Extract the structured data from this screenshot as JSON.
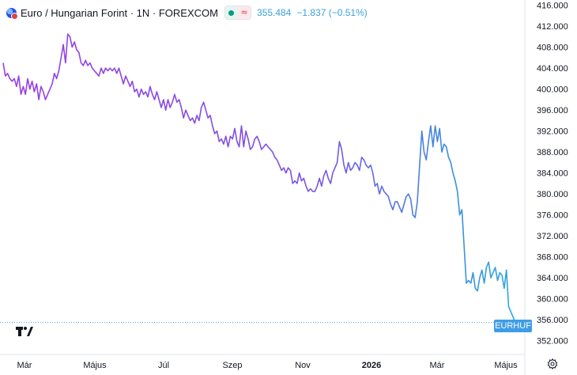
{
  "legend": {
    "title": "Euro / Hungarian Forint · 1N · FOREXCOM",
    "price": "355.484",
    "change": "−1.837 (−0.51%)",
    "wave_symbol": "≈"
  },
  "price_tag": "EURHUF",
  "colors": {
    "line_start": "#9a3fe3",
    "line_end": "#2fa7e3",
    "last_price_line": "#4aa6e8",
    "grid": "#f0f3fa",
    "axis_text": "#131722"
  },
  "icons": [
    "tradingview-logo-icon",
    "gear-icon",
    "market-open-dot-icon",
    "wave-icon"
  ],
  "chart_data": {
    "type": "line",
    "ylim": [
      350.0,
      417.0
    ],
    "y_ticks": [
      "416.000",
      "412.000",
      "408.000",
      "404.000",
      "400.000",
      "396.000",
      "392.000",
      "388.000",
      "384.000",
      "380.000",
      "376.000",
      "372.000",
      "368.000",
      "364.000",
      "360.000",
      "356.000",
      "352.000"
    ],
    "x_ticks": [
      "Már",
      "Május",
      "Júl",
      "Szep",
      "Nov",
      "2026",
      "Már",
      "Május"
    ],
    "grid": false,
    "last_price": 355.484,
    "series": [
      {
        "values": [
          405.0,
          402.5,
          403.0,
          402.0,
          401.5,
          402.0,
          400.5,
          402.5,
          399.0,
          400.5,
          399.0,
          402.0,
          400.0,
          401.5,
          399.5,
          401.0,
          398.0,
          400.5,
          399.5,
          398.0,
          399.0,
          400.0,
          401.0,
          403.0,
          402.0,
          403.5,
          406.0,
          408.5,
          405.0,
          410.5,
          410.0,
          408.0,
          409.0,
          407.5,
          407.0,
          405.0,
          404.5,
          405.5,
          404.5,
          405.0,
          404.0,
          403.5,
          403.0,
          402.5,
          404.0,
          403.0,
          404.0,
          403.5,
          404.0,
          403.5,
          404.0,
          403.0,
          404.0,
          402.5,
          401.0,
          402.5,
          401.5,
          400.5,
          401.5,
          399.5,
          400.0,
          398.5,
          400.0,
          399.0,
          399.5,
          398.5,
          400.5,
          399.0,
          398.0,
          399.5,
          398.0,
          396.5,
          398.0,
          396.0,
          398.0,
          396.5,
          397.5,
          399.0,
          397.5,
          398.0,
          396.5,
          394.5,
          396.0,
          395.0,
          394.0,
          394.5,
          393.5,
          395.0,
          394.0,
          396.5,
          397.5,
          396.0,
          394.5,
          395.0,
          393.0,
          391.5,
          392.0,
          390.0,
          390.5,
          389.5,
          391.0,
          389.0,
          391.0,
          390.5,
          392.5,
          390.0,
          389.0,
          393.0,
          389.0,
          392.0,
          390.5,
          388.5,
          389.0,
          390.5,
          391.0,
          390.0,
          388.5,
          389.0,
          389.5,
          389.0,
          388.5,
          388.0,
          387.0,
          386.5,
          385.5,
          384.5,
          385.0,
          384.0,
          385.0,
          384.5,
          382.0,
          382.5,
          382.0,
          384.0,
          382.5,
          383.0,
          381.5,
          380.5,
          381.0,
          380.5,
          380.5,
          381.5,
          383.0,
          381.5,
          383.5,
          384.5,
          383.0,
          382.0,
          384.0,
          385.0,
          386.0,
          390.0,
          388.5,
          385.5,
          384.0,
          386.0,
          384.5,
          385.0,
          386.0,
          385.5,
          384.5,
          387.0,
          386.5,
          385.5,
          385.0,
          385.5,
          384.0,
          381.5,
          382.0,
          380.0,
          381.5,
          380.5,
          380.0,
          379.5,
          378.0,
          377.0,
          378.5,
          378.5,
          377.5,
          376.5,
          378.0,
          379.5,
          380.0,
          379.0,
          376.0,
          375.5,
          378.5,
          385.5,
          392.0,
          388.0,
          386.5,
          390.0,
          393.0,
          389.0,
          393.0,
          390.0,
          392.5,
          388.0,
          389.5,
          389.0,
          387.0,
          386.0,
          384.0,
          382.5,
          380.5,
          376.0,
          377.0,
          370.0,
          363.0,
          363.5,
          363.0,
          365.0,
          362.0,
          361.5,
          364.0,
          365.5,
          363.0,
          366.0,
          367.0,
          364.0,
          365.0,
          366.0,
          363.5,
          365.0,
          364.5,
          362.0,
          365.5,
          358.5,
          357.5,
          356.5,
          355.484
        ],
        "start_date": "",
        "color_gradient": [
          "#9a3fe3",
          "#2fa7e3"
        ]
      }
    ]
  }
}
